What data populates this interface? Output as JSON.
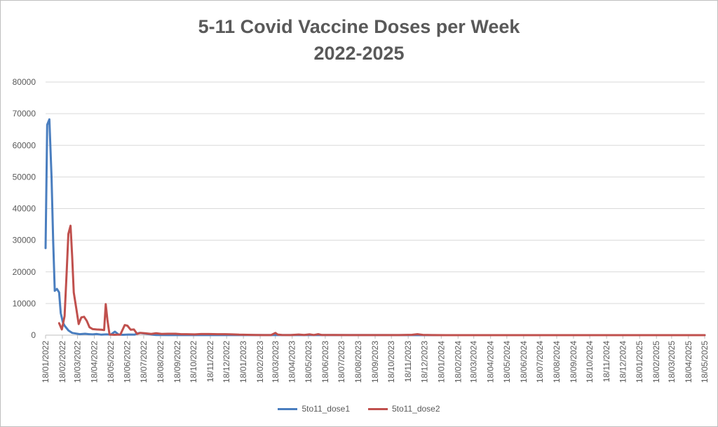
{
  "chart_data": {
    "type": "line",
    "title": [
      "5-11 Covid Vaccine Doses per Week",
      "2022-2025"
    ],
    "xlabel": "",
    "ylabel": "",
    "ylim": [
      0,
      80000
    ],
    "yticks": [
      0,
      10000,
      20000,
      30000,
      40000,
      50000,
      60000,
      70000,
      80000
    ],
    "grid": true,
    "legend_position": "bottom",
    "xlim": [
      "2022-01-18",
      "2025-05-18"
    ],
    "xticks": [
      "18/01/2022",
      "18/02/2022",
      "18/03/2022",
      "18/04/2022",
      "18/05/2022",
      "18/06/2022",
      "18/07/2022",
      "18/08/2022",
      "18/09/2022",
      "18/10/2022",
      "18/11/2022",
      "18/12/2022",
      "18/01/2023",
      "18/02/2023",
      "18/03/2023",
      "18/04/2023",
      "18/05/2023",
      "18/06/2023",
      "18/07/2023",
      "18/08/2023",
      "18/09/2023",
      "18/10/2023",
      "18/11/2023",
      "18/12/2023",
      "18/01/2024",
      "18/02/2024",
      "18/03/2024",
      "18/04/2024",
      "18/05/2024",
      "18/06/2024",
      "18/07/2024",
      "18/08/2024",
      "18/09/2024",
      "18/10/2024",
      "18/11/2024",
      "18/12/2024",
      "18/01/2025",
      "18/02/2025",
      "18/03/2025",
      "18/04/2025",
      "18/05/2025"
    ],
    "series": [
      {
        "name": "5to11_dose1",
        "color": "#4a7ebf",
        "points": [
          [
            "2022-01-18",
            27500
          ],
          [
            "2022-01-21",
            66500
          ],
          [
            "2022-01-25",
            68200
          ],
          [
            "2022-01-29",
            50000
          ],
          [
            "2022-02-01",
            30000
          ],
          [
            "2022-02-04",
            14000
          ],
          [
            "2022-02-08",
            14600
          ],
          [
            "2022-02-12",
            13500
          ],
          [
            "2022-02-15",
            7000
          ],
          [
            "2022-02-19",
            4000
          ],
          [
            "2022-02-22",
            3000
          ],
          [
            "2022-03-01",
            1500
          ],
          [
            "2022-03-08",
            700
          ],
          [
            "2022-03-15",
            500
          ],
          [
            "2022-03-22",
            300
          ],
          [
            "2022-04-01",
            450
          ],
          [
            "2022-04-08",
            300
          ],
          [
            "2022-04-15",
            250
          ],
          [
            "2022-04-22",
            350
          ],
          [
            "2022-05-01",
            150
          ],
          [
            "2022-05-10",
            250
          ],
          [
            "2022-05-18",
            150
          ],
          [
            "2022-05-26",
            1100
          ],
          [
            "2022-06-02",
            150
          ],
          [
            "2022-06-10",
            100
          ],
          [
            "2022-06-20",
            200
          ],
          [
            "2022-07-01",
            150
          ],
          [
            "2022-07-10",
            700
          ],
          [
            "2022-07-20",
            500
          ],
          [
            "2022-08-01",
            200
          ],
          [
            "2022-08-10",
            50
          ],
          [
            "2022-09-01",
            20
          ],
          [
            "2025-05-18",
            0
          ]
        ]
      },
      {
        "name": "5to11_dose2",
        "color": "#c0504d",
        "points": [
          [
            "2022-02-12",
            3800
          ],
          [
            "2022-02-17",
            1800
          ],
          [
            "2022-02-22",
            6000
          ],
          [
            "2022-02-26",
            20000
          ],
          [
            "2022-03-01",
            32000
          ],
          [
            "2022-03-05",
            34600
          ],
          [
            "2022-03-08",
            25000
          ],
          [
            "2022-03-11",
            13500
          ],
          [
            "2022-03-16",
            8000
          ],
          [
            "2022-03-20",
            3500
          ],
          [
            "2022-03-25",
            5600
          ],
          [
            "2022-03-30",
            5800
          ],
          [
            "2022-04-04",
            4500
          ],
          [
            "2022-04-09",
            2500
          ],
          [
            "2022-04-15",
            1900
          ],
          [
            "2022-04-22",
            1800
          ],
          [
            "2022-05-01",
            1700
          ],
          [
            "2022-05-06",
            1600
          ],
          [
            "2022-05-09",
            9800
          ],
          [
            "2022-05-12",
            5000
          ],
          [
            "2022-05-16",
            200
          ],
          [
            "2022-05-25",
            100
          ],
          [
            "2022-06-05",
            200
          ],
          [
            "2022-06-13",
            3200
          ],
          [
            "2022-06-18",
            3000
          ],
          [
            "2022-06-24",
            1700
          ],
          [
            "2022-06-30",
            1800
          ],
          [
            "2022-07-06",
            400
          ],
          [
            "2022-07-12",
            700
          ],
          [
            "2022-07-20",
            600
          ],
          [
            "2022-08-01",
            400
          ],
          [
            "2022-08-10",
            600
          ],
          [
            "2022-08-20",
            400
          ],
          [
            "2022-09-01",
            450
          ],
          [
            "2022-09-15",
            450
          ],
          [
            "2022-09-25",
            300
          ],
          [
            "2022-10-05",
            300
          ],
          [
            "2022-10-20",
            250
          ],
          [
            "2022-11-01",
            350
          ],
          [
            "2022-11-15",
            350
          ],
          [
            "2022-12-01",
            300
          ],
          [
            "2022-12-15",
            300
          ],
          [
            "2022-12-28",
            250
          ],
          [
            "2023-01-10",
            150
          ],
          [
            "2023-01-25",
            100
          ],
          [
            "2023-02-10",
            50
          ],
          [
            "2023-02-25",
            30
          ],
          [
            "2023-03-10",
            30
          ],
          [
            "2023-03-18",
            700
          ],
          [
            "2023-03-22",
            200
          ],
          [
            "2023-03-30",
            50
          ],
          [
            "2023-04-15",
            30
          ],
          [
            "2023-04-30",
            200
          ],
          [
            "2023-05-10",
            50
          ],
          [
            "2023-05-20",
            250
          ],
          [
            "2023-05-28",
            50
          ],
          [
            "2023-06-05",
            300
          ],
          [
            "2023-06-12",
            50
          ],
          [
            "2023-07-01",
            50
          ],
          [
            "2023-08-01",
            30
          ],
          [
            "2023-09-01",
            30
          ],
          [
            "2023-10-01",
            20
          ],
          [
            "2023-11-01",
            20
          ],
          [
            "2023-11-25",
            100
          ],
          [
            "2023-12-05",
            300
          ],
          [
            "2023-12-15",
            80
          ],
          [
            "2024-01-01",
            20
          ],
          [
            "2024-03-01",
            10
          ],
          [
            "2025-05-18",
            0
          ]
        ]
      }
    ]
  }
}
